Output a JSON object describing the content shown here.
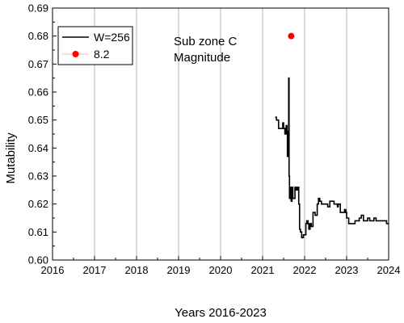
{
  "chart_data": {
    "type": "line",
    "title": "",
    "xlabel": "Years 2016-2023",
    "ylabel": "Mutability",
    "xlim": [
      2016,
      2024
    ],
    "ylim": [
      0.6,
      0.69
    ],
    "x_ticks": [
      "2016",
      "2017",
      "2018",
      "2019",
      "2020",
      "2021",
      "2022",
      "2023",
      "2024"
    ],
    "y_ticks": [
      "0.60",
      "0.61",
      "0.62",
      "0.63",
      "0.64",
      "0.65",
      "0.66",
      "0.67",
      "0.68",
      "0.69"
    ],
    "grid": "vertical",
    "legend": "top-left",
    "annotation_lines": [
      "Sub zone C",
      "Magnitude"
    ],
    "series": [
      {
        "name": "W=256",
        "kind": "line",
        "color": "#000000",
        "points": [
          [
            2021.3,
            0.651
          ],
          [
            2021.33,
            0.65
          ],
          [
            2021.36,
            0.65
          ],
          [
            2021.38,
            0.647
          ],
          [
            2021.45,
            0.647
          ],
          [
            2021.48,
            0.649
          ],
          [
            2021.5,
            0.647
          ],
          [
            2021.53,
            0.645
          ],
          [
            2021.55,
            0.645
          ],
          [
            2021.56,
            0.648
          ],
          [
            2021.58,
            0.646
          ],
          [
            2021.59,
            0.637
          ],
          [
            2021.6,
            0.645
          ],
          [
            2021.61,
            0.642
          ],
          [
            2021.62,
            0.665
          ],
          [
            2021.63,
            0.63
          ],
          [
            2021.64,
            0.622
          ],
          [
            2021.65,
            0.625
          ],
          [
            2021.66,
            0.626
          ],
          [
            2021.67,
            0.623
          ],
          [
            2021.68,
            0.621
          ],
          [
            2021.7,
            0.626
          ],
          [
            2021.72,
            0.622
          ],
          [
            2021.75,
            0.622
          ],
          [
            2021.77,
            0.626
          ],
          [
            2021.8,
            0.625
          ],
          [
            2021.83,
            0.626
          ],
          [
            2021.86,
            0.62
          ],
          [
            2021.88,
            0.611
          ],
          [
            2021.9,
            0.61
          ],
          [
            2021.93,
            0.608
          ],
          [
            2021.97,
            0.609
          ],
          [
            2022.0,
            0.609
          ],
          [
            2022.03,
            0.613
          ],
          [
            2022.05,
            0.614
          ],
          [
            2022.08,
            0.613
          ],
          [
            2022.1,
            0.611
          ],
          [
            2022.13,
            0.613
          ],
          [
            2022.16,
            0.612
          ],
          [
            2022.2,
            0.617
          ],
          [
            2022.22,
            0.617
          ],
          [
            2022.25,
            0.616
          ],
          [
            2022.3,
            0.62
          ],
          [
            2022.33,
            0.622
          ],
          [
            2022.36,
            0.621
          ],
          [
            2022.4,
            0.62
          ],
          [
            2022.45,
            0.62
          ],
          [
            2022.5,
            0.62
          ],
          [
            2022.55,
            0.619
          ],
          [
            2022.6,
            0.621
          ],
          [
            2022.65,
            0.621
          ],
          [
            2022.7,
            0.62
          ],
          [
            2022.75,
            0.62
          ],
          [
            2022.78,
            0.619
          ],
          [
            2022.8,
            0.62
          ],
          [
            2022.85,
            0.617
          ],
          [
            2022.9,
            0.617
          ],
          [
            2022.95,
            0.618
          ],
          [
            2022.98,
            0.617
          ],
          [
            2023.0,
            0.615
          ],
          [
            2023.05,
            0.613
          ],
          [
            2023.1,
            0.613
          ],
          [
            2023.15,
            0.613
          ],
          [
            2023.2,
            0.614
          ],
          [
            2023.25,
            0.614
          ],
          [
            2023.3,
            0.615
          ],
          [
            2023.35,
            0.616
          ],
          [
            2023.4,
            0.614
          ],
          [
            2023.45,
            0.614
          ],
          [
            2023.5,
            0.615
          ],
          [
            2023.55,
            0.614
          ],
          [
            2023.6,
            0.614
          ],
          [
            2023.65,
            0.615
          ],
          [
            2023.7,
            0.614
          ],
          [
            2023.8,
            0.614
          ],
          [
            2023.9,
            0.614
          ],
          [
            2023.95,
            0.613
          ],
          [
            2024.0,
            0.613
          ]
        ]
      },
      {
        "name": "8.2",
        "kind": "scatter",
        "color": "#ff0000",
        "points": [
          [
            2021.68,
            0.68
          ]
        ]
      }
    ]
  }
}
